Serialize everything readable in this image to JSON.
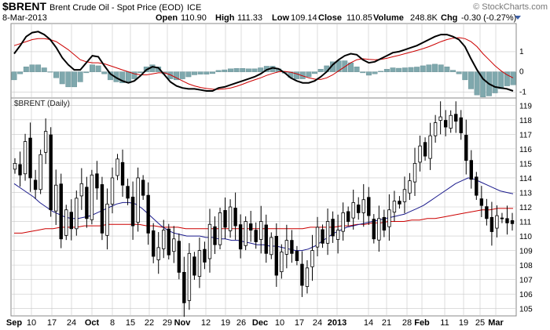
{
  "header": {
    "symbol": "$BRENT",
    "name": "Brent Crude Oil - Spot Price (EOD)",
    "exchange": "ICE",
    "brand": "© StockCharts.com",
    "date": "8-Mar-2013",
    "open_label": "Open",
    "open": "110.90",
    "high_label": "High",
    "high": "111.33",
    "low_label": "Low",
    "low": "109.14",
    "close_label": "Close",
    "close": "110.85",
    "volume_label": "Volume",
    "volume": "248.8K",
    "chg_label": "Chg",
    "chg": "-0.30 (-0.27%)"
  },
  "colors": {
    "price_up": "#000000",
    "ma_fast": "#1a1a8c",
    "ma_slow": "#cc0000",
    "macd_line": "#000000",
    "signal_line": "#cc0000",
    "histogram": "#7fa8ad",
    "grid": "#c8c8c8"
  },
  "chart_data": [
    {
      "type": "line",
      "subtype": "indicator",
      "yticks": [
        1,
        0,
        -1
      ],
      "ylim": [
        -1.3,
        2.4
      ],
      "grid": true,
      "series": [],
      "macd": [
        0.9,
        1.3,
        1.75,
        1.95,
        2.0,
        1.85,
        1.6,
        1.2,
        0.7,
        0.35,
        0.1,
        0.1,
        0.45,
        0.8,
        0.75,
        0.3,
        -0.1,
        -0.3,
        -0.45,
        -0.55,
        -0.45,
        -0.2,
        0.1,
        0.25,
        0.2,
        -0.15,
        -0.5,
        -0.7,
        -0.8,
        -0.85,
        -0.85,
        -0.9,
        -0.95,
        -0.95,
        -0.8,
        -0.75,
        -0.65,
        -0.55,
        -0.45,
        -0.35,
        -0.25,
        -0.1,
        0.1,
        0.2,
        0.15,
        -0.05,
        -0.3,
        -0.45,
        -0.55,
        -0.55,
        -0.45,
        -0.25,
        0.0,
        0.35,
        0.6,
        0.8,
        0.9,
        0.85,
        0.6,
        0.45,
        0.5,
        0.65,
        0.8,
        0.95,
        1.0,
        1.1,
        1.2,
        1.3,
        1.45,
        1.6,
        1.75,
        1.85,
        1.85,
        1.75,
        1.6,
        1.25,
        0.65,
        0.1,
        -0.35,
        -0.6,
        -0.75,
        -0.8,
        -0.85,
        -0.95
      ],
      "signal": [
        1.3,
        1.4,
        1.5,
        1.6,
        1.65,
        1.65,
        1.6,
        1.5,
        1.3,
        1.1,
        0.85,
        0.6,
        0.5,
        0.45,
        0.45,
        0.4,
        0.3,
        0.2,
        0.1,
        0.0,
        -0.1,
        -0.15,
        -0.15,
        -0.1,
        -0.05,
        -0.05,
        -0.15,
        -0.3,
        -0.45,
        -0.6,
        -0.7,
        -0.78,
        -0.83,
        -0.86,
        -0.87,
        -0.85,
        -0.8,
        -0.72,
        -0.62,
        -0.5,
        -0.4,
        -0.3,
        -0.18,
        -0.08,
        0.0,
        0.02,
        -0.02,
        -0.1,
        -0.2,
        -0.3,
        -0.36,
        -0.38,
        -0.3,
        -0.15,
        0.05,
        0.25,
        0.45,
        0.6,
        0.65,
        0.62,
        0.6,
        0.62,
        0.67,
        0.75,
        0.82,
        0.9,
        0.98,
        1.06,
        1.15,
        1.25,
        1.37,
        1.5,
        1.6,
        1.67,
        1.7,
        1.65,
        1.5,
        1.25,
        0.9,
        0.6,
        0.3,
        0.05,
        -0.15,
        -0.3
      ]
    },
    {
      "type": "candlestick",
      "title": "$BRENT (Daily)",
      "ylim": [
        104.5,
        119.5
      ],
      "yticks": [
        105,
        106,
        107,
        108,
        109,
        110,
        111,
        112,
        113,
        114,
        115,
        116,
        117,
        118,
        119
      ],
      "xlabels": [
        "Sep",
        "10",
        "17",
        "24",
        "Oct",
        "8",
        "15",
        "22",
        "29",
        "Nov",
        "12",
        "19",
        "26",
        "Dec",
        "10",
        "17",
        "24",
        "2013",
        "14",
        "21",
        "28",
        "Feb",
        "11",
        "19",
        "25",
        "Mar"
      ],
      "grid": true,
      "series": [],
      "closes": [
        115.0,
        114.2,
        116.5,
        114.0,
        113.2,
        115.6,
        117.2,
        111.8,
        113.5,
        109.8,
        111.8,
        110.5,
        112.6,
        113.6,
        111.2,
        114.2,
        113.3,
        110.2,
        112.2,
        114.0,
        115.3,
        113.5,
        112.6,
        110.7,
        114.0,
        112.8,
        110.2,
        108.6,
        109.2,
        110.4,
        108.7,
        109.8,
        107.5,
        105.4,
        108.8,
        107.3,
        109.0,
        108.2,
        110.8,
        109.4,
        111.6,
        110.6,
        112.0,
        110.7,
        109.1,
        111.0,
        110.4,
        109.6,
        111.0,
        108.8,
        109.9,
        107.3,
        108.9,
        109.7,
        108.8,
        108.3,
        106.6,
        107.8,
        109.0,
        110.6,
        109.5,
        111.0,
        110.0,
        110.4,
        111.6,
        111.0,
        112.3,
        111.6,
        112.5,
        111.4,
        109.8,
        111.2,
        110.4,
        111.8,
        112.4,
        112.2,
        113.2,
        113.8,
        115.0,
        116.2,
        115.5,
        116.9,
        117.8,
        118.2,
        117.5,
        118.3,
        117.9,
        117.1,
        115.2,
        113.9,
        112.8,
        112.1,
        111.2,
        110.3,
        111.4,
        111.2,
        110.9,
        110.85
      ],
      "ma_fast": [
        113.6,
        113.3,
        113.0,
        112.7,
        112.3,
        112.0,
        111.7,
        111.5,
        111.3,
        111.2,
        111.2,
        111.3,
        111.4,
        111.6,
        111.8,
        112.0,
        112.2,
        112.3,
        112.3,
        112.2,
        111.9,
        111.5,
        111.1,
        110.7,
        110.4,
        110.2,
        110.1,
        110.0,
        110.0,
        110.0,
        109.9,
        109.9,
        109.8,
        109.8,
        109.7,
        109.7,
        109.6,
        109.5,
        109.4,
        109.4,
        109.3,
        109.3,
        109.2,
        109.1,
        109.0,
        109.0,
        109.1,
        109.3,
        109.6,
        109.9,
        110.2,
        110.4,
        110.6,
        110.7,
        110.8,
        110.9,
        111.0,
        111.1,
        111.2,
        111.3,
        111.4,
        111.5,
        111.7,
        111.9,
        112.1,
        112.4,
        112.7,
        113.0,
        113.3,
        113.6,
        113.8,
        114.0,
        113.9,
        113.7,
        113.5,
        113.3,
        113.1,
        113.0,
        112.9
      ],
      "ma_slow": [
        110.2,
        110.2,
        110.3,
        110.4,
        110.5,
        110.5,
        110.6,
        110.6,
        110.6,
        110.7,
        110.7,
        110.7,
        110.8,
        110.8,
        110.8,
        110.8,
        110.8,
        110.7,
        110.7,
        110.6,
        110.6,
        110.6,
        110.5,
        110.5,
        110.5,
        110.5,
        110.5,
        110.5,
        110.5,
        110.5,
        110.5,
        110.5,
        110.5,
        110.5,
        110.5,
        110.5,
        110.5,
        110.5,
        110.6,
        110.6,
        110.6,
        110.6,
        110.7,
        110.7,
        110.8,
        110.8,
        110.9,
        110.9,
        111.0,
        111.0,
        111.0,
        111.1,
        111.1,
        111.2,
        111.2,
        111.3,
        111.4,
        111.5,
        111.6,
        111.7,
        111.8,
        111.8,
        111.9,
        111.9,
        111.9
      ]
    }
  ]
}
